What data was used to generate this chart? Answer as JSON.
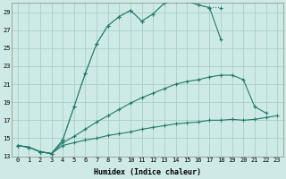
{
  "xlabel": "Humidex (Indice chaleur)",
  "background_color": "#ceeae6",
  "grid_color": "#aaceca",
  "line_color": "#217a6a",
  "xlim": [
    -0.5,
    23.5
  ],
  "ylim": [
    13,
    30
  ],
  "yticks": [
    13,
    15,
    17,
    19,
    21,
    23,
    25,
    27,
    29
  ],
  "xticks": [
    0,
    1,
    2,
    3,
    4,
    5,
    6,
    7,
    8,
    9,
    10,
    11,
    12,
    13,
    14,
    15,
    16,
    17,
    18,
    19,
    20,
    21,
    22,
    23
  ],
  "series": [
    {
      "x": [
        0,
        1,
        2,
        3,
        4,
        5,
        6,
        7,
        8,
        9,
        10,
        11,
        12,
        13,
        14,
        15,
        16,
        17,
        18,
        19,
        20,
        21,
        22,
        23
      ],
      "y": [
        14.2,
        14.0,
        13.5,
        13.3,
        14.8,
        18.5,
        22.2,
        25.5,
        27.5,
        28.5,
        29.2,
        28.0,
        28.8,
        30.0,
        30.2,
        30.2,
        29.8,
        29.5,
        29.5,
        null,
        null,
        null,
        null,
        null
      ],
      "style": "dotted",
      "marker": true
    },
    {
      "x": [
        0,
        1,
        2,
        3,
        4,
        5,
        6,
        7,
        8,
        9,
        10,
        11,
        12,
        13,
        14,
        15,
        16,
        17,
        18,
        19,
        20,
        21,
        22,
        23
      ],
      "y": [
        14.2,
        14.0,
        13.5,
        13.3,
        14.8,
        18.5,
        22.2,
        25.5,
        27.5,
        28.5,
        29.2,
        28.0,
        28.8,
        30.0,
        30.2,
        30.2,
        29.8,
        29.5,
        26.0,
        null,
        null,
        null,
        null,
        null
      ],
      "style": "solid",
      "marker": true
    },
    {
      "x": [
        0,
        1,
        2,
        3,
        4,
        5,
        6,
        7,
        8,
        9,
        10,
        11,
        12,
        13,
        14,
        15,
        16,
        17,
        18,
        19,
        20,
        21,
        22,
        23
      ],
      "y": [
        14.2,
        14.0,
        13.5,
        13.3,
        14.5,
        15.2,
        16.0,
        16.8,
        17.5,
        18.2,
        18.9,
        19.5,
        20.0,
        20.5,
        21.0,
        21.3,
        21.5,
        21.8,
        22.0,
        22.0,
        21.5,
        18.5,
        17.8,
        null
      ],
      "style": "solid",
      "marker": true
    },
    {
      "x": [
        0,
        1,
        2,
        3,
        4,
        5,
        6,
        7,
        8,
        9,
        10,
        11,
        12,
        13,
        14,
        15,
        16,
        17,
        18,
        19,
        20,
        21,
        22,
        23
      ],
      "y": [
        14.2,
        14.0,
        13.5,
        13.3,
        14.2,
        14.5,
        14.8,
        15.0,
        15.3,
        15.5,
        15.7,
        16.0,
        16.2,
        16.4,
        16.6,
        16.7,
        16.8,
        17.0,
        17.0,
        17.1,
        17.0,
        17.1,
        17.3,
        17.5
      ],
      "style": "solid",
      "marker": true
    }
  ]
}
